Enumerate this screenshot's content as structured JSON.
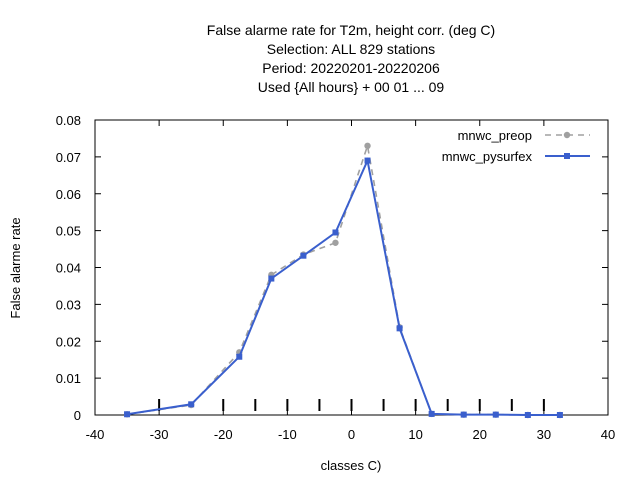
{
  "chart_data": {
    "type": "line",
    "title": [
      "False alarme rate  for T2m, height corr. (deg C)",
      "Selection: ALL    829 stations",
      "Period: 20220201-20220206",
      "Used {All hours} + 00 01 ... 09"
    ],
    "xlabel": "classes C)",
    "ylabel": "False alarme rate",
    "xlim": [
      -40,
      40
    ],
    "ylim": [
      0,
      0.08
    ],
    "x_ticks": [
      -40,
      -30,
      -20,
      -10,
      0,
      10,
      20,
      30,
      40
    ],
    "y_ticks": [
      0,
      0.01,
      0.02,
      0.03,
      0.04,
      0.05,
      0.06,
      0.07,
      0.08
    ],
    "x_tick_labels": [
      "-40",
      "-30",
      "-20",
      "-10",
      "0",
      "10",
      "20",
      "30",
      "40"
    ],
    "y_tick_labels": [
      "0",
      "0.01",
      "0.02",
      "0.03",
      "0.04",
      "0.05",
      "0.06",
      "0.07",
      "0.08"
    ],
    "class_markers_x": [
      -30,
      -20,
      -15,
      -10,
      -5,
      0,
      5,
      10,
      15,
      20,
      25,
      30
    ],
    "grid": false,
    "legend_position": "top-right",
    "series": [
      {
        "name": "mnwc_preop",
        "color": "#a0a0a0",
        "style": "dashed",
        "x": [
          -35,
          -25,
          -17.5,
          -12.5,
          -7.5,
          -2.5,
          2.5,
          7.5,
          12.5,
          17.5,
          22.5,
          27.5,
          32.5
        ],
        "y": [
          0.0002,
          0.0027,
          0.017,
          0.038,
          0.0435,
          0.0467,
          0.073,
          0.0238,
          0.0003,
          0.0001,
          0.0001,
          0.0,
          0.0
        ]
      },
      {
        "name": "mnwc_pysurfex",
        "color": "#3a5fcd",
        "style": "solid",
        "x": [
          -35,
          -25,
          -17.5,
          -12.5,
          -7.5,
          -2.5,
          2.5,
          7.5,
          12.5,
          17.5,
          22.5,
          27.5,
          32.5
        ],
        "y": [
          0.0002,
          0.0029,
          0.0158,
          0.037,
          0.0432,
          0.0495,
          0.069,
          0.0235,
          0.0003,
          0.0001,
          0.0001,
          0.0,
          0.0
        ]
      }
    ]
  }
}
